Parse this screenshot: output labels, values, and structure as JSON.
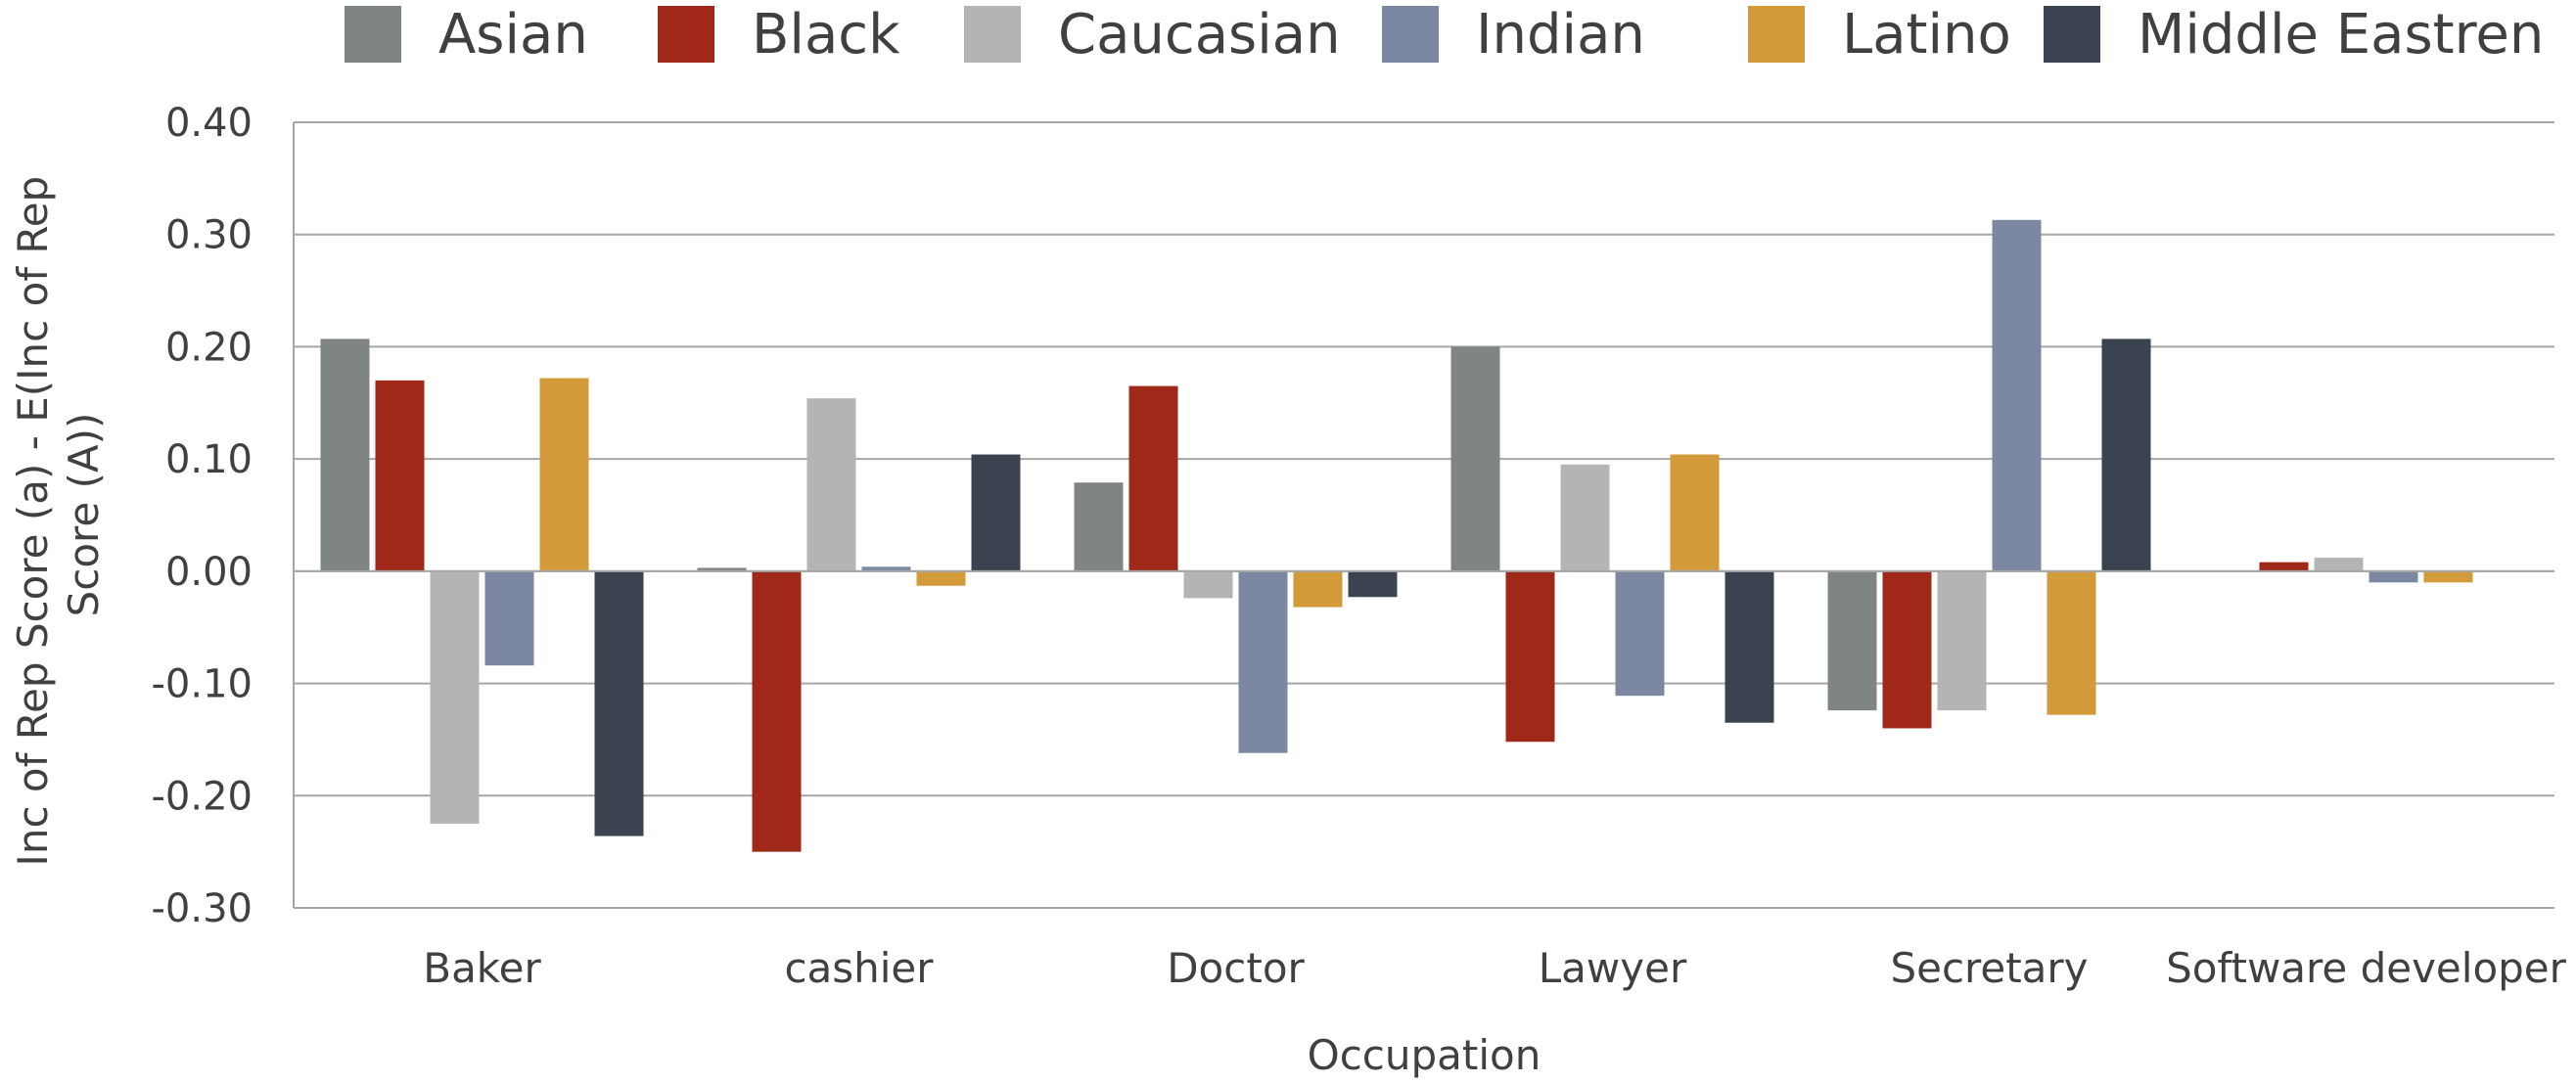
{
  "chart_data": {
    "type": "bar",
    "categories": [
      "Baker",
      "cashier",
      "Doctor",
      "Lawyer",
      "Secretary",
      "Software developer"
    ],
    "series": [
      {
        "name": "Asian",
        "color": "#7f8682",
        "values": [
          0.207,
          0.003,
          0.079,
          0.2,
          -0.124,
          0.0
        ]
      },
      {
        "name": "Black",
        "color": "#a02818",
        "values": [
          0.17,
          -0.25,
          0.165,
          -0.152,
          -0.14,
          0.008
        ]
      },
      {
        "name": "Caucasian",
        "color": "#b4b4b4",
        "values": [
          -0.225,
          0.154,
          -0.024,
          0.095,
          -0.124,
          0.012
        ]
      },
      {
        "name": "Indian",
        "color": "#7c88a2",
        "values": [
          -0.084,
          0.004,
          -0.162,
          -0.111,
          0.313,
          -0.01
        ]
      },
      {
        "name": "Latino",
        "color": "#d39a3a",
        "values": [
          0.172,
          -0.013,
          -0.032,
          0.104,
          -0.128,
          -0.01
        ]
      },
      {
        "name": "Middle Eastren",
        "color": "#3c4350",
        "values": [
          -0.236,
          0.104,
          -0.023,
          -0.135,
          0.207,
          0.0
        ]
      }
    ],
    "ylim": [
      -0.3,
      0.4
    ],
    "yticks": [
      "-0.30",
      "-0.20",
      "-0.10",
      "0.00",
      "0.10",
      "0.20",
      "0.30",
      "0.40"
    ],
    "ytick_values": [
      -0.3,
      -0.2,
      -0.1,
      0.0,
      0.1,
      0.2,
      0.3,
      0.4
    ],
    "xlabel": "Occupation",
    "ylabel_lines": [
      "Inc of Rep Score (a) - E(Inc of Rep",
      "Score (A))"
    ],
    "grid": true,
    "legend_position": "top"
  }
}
